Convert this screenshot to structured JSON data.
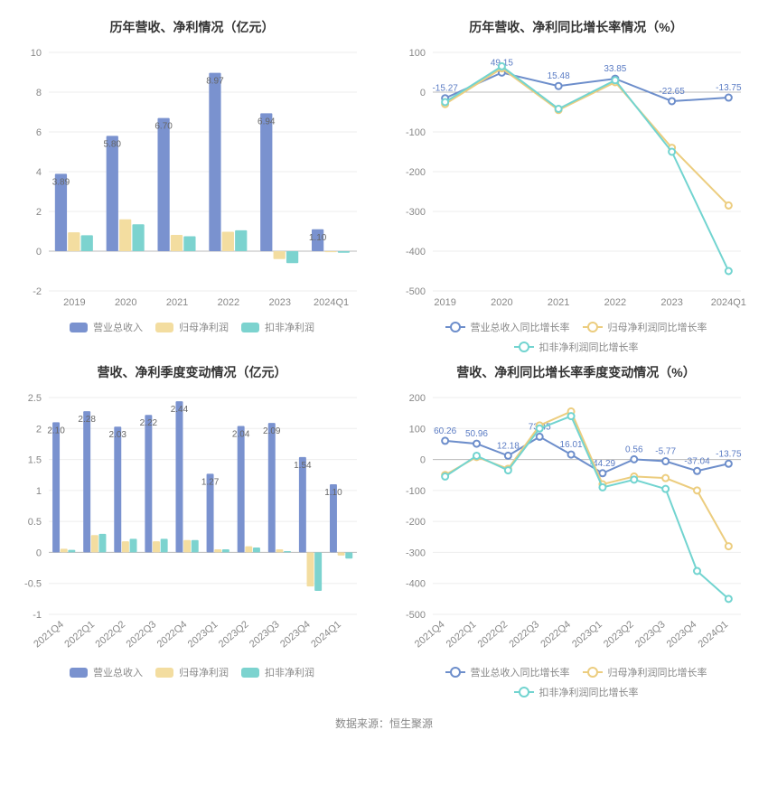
{
  "source_label": "数据来源：恒生聚源",
  "colors": {
    "bar1": "#7a92cf",
    "bar2": "#f3dda0",
    "bar3": "#7cd3cf",
    "line1": "#6d8ecb",
    "line2": "#eccd7f",
    "line3": "#72d4d0",
    "grid": "#eeeeee",
    "axis": "#cccccc",
    "text_muted": "#888888",
    "title": "#333333",
    "bg": "#ffffff"
  },
  "panels": {
    "top_left": {
      "title": "历年营收、净利情况（亿元）",
      "type": "bar",
      "categories": [
        "2019",
        "2020",
        "2021",
        "2022",
        "2023",
        "2024Q1"
      ],
      "ylim": [
        -2,
        10
      ],
      "ytick_step": 2,
      "series": [
        {
          "name": "营业总收入",
          "color_key": "bar1",
          "values": [
            3.89,
            5.8,
            6.7,
            8.97,
            6.94,
            1.1
          ],
          "show_labels": true
        },
        {
          "name": "归母净利润",
          "color_key": "bar2",
          "values": [
            0.95,
            1.6,
            0.82,
            0.98,
            -0.4,
            -0.05
          ]
        },
        {
          "name": "扣非净利润",
          "color_key": "bar3",
          "values": [
            0.8,
            1.35,
            0.75,
            1.05,
            -0.6,
            -0.08
          ]
        }
      ],
      "legend": [
        "营业总收入",
        "归母净利润",
        "扣非净利润"
      ]
    },
    "top_right": {
      "title": "历年营收、净利同比增长率情况（%）",
      "type": "line",
      "categories": [
        "2019",
        "2020",
        "2021",
        "2022",
        "2023",
        "2024Q1"
      ],
      "ylim": [
        -500,
        100
      ],
      "ytick_step": 100,
      "series": [
        {
          "name": "营业总收入同比增长率",
          "color_key": "line1",
          "values": [
            -15.27,
            49.15,
            15.48,
            33.85,
            -22.65,
            -13.75
          ],
          "show_labels": true
        },
        {
          "name": "归母净利润同比增长率",
          "color_key": "line2",
          "values": [
            -30,
            60,
            -45,
            25,
            -140,
            -285
          ]
        },
        {
          "name": "扣非净利润同比增长率",
          "color_key": "line3",
          "values": [
            -25,
            65,
            -42,
            30,
            -150,
            -450
          ]
        }
      ],
      "legend": [
        "营业总收入同比增长率",
        "归母净利润同比增长率",
        "扣非净利润同比增长率"
      ]
    },
    "bottom_left": {
      "title": "营收、净利季度变动情况（亿元）",
      "type": "bar",
      "categories": [
        "2021Q4",
        "2022Q1",
        "2022Q2",
        "2022Q3",
        "2022Q4",
        "2023Q1",
        "2023Q2",
        "2023Q3",
        "2023Q4",
        "2024Q1"
      ],
      "rotate_x": true,
      "ylim": [
        -1,
        2.5
      ],
      "ytick_step": 0.5,
      "series": [
        {
          "name": "营业总收入",
          "color_key": "bar1",
          "values": [
            2.1,
            2.28,
            2.03,
            2.22,
            2.44,
            1.27,
            2.04,
            2.09,
            1.54,
            1.1
          ],
          "show_labels": true
        },
        {
          "name": "归母净利润",
          "color_key": "bar2",
          "values": [
            0.06,
            0.28,
            0.18,
            0.18,
            0.2,
            0.05,
            0.1,
            0.05,
            -0.55,
            -0.05
          ]
        },
        {
          "name": "扣非净利润",
          "color_key": "bar3",
          "values": [
            0.04,
            0.3,
            0.22,
            0.22,
            0.2,
            0.05,
            0.08,
            0.02,
            -0.62,
            -0.1
          ]
        }
      ],
      "legend": [
        "营业总收入",
        "归母净利润",
        "扣非净利润"
      ]
    },
    "bottom_right": {
      "title": "营收、净利同比增长率季度变动情况（%）",
      "type": "line",
      "categories": [
        "2021Q4",
        "2022Q1",
        "2022Q2",
        "2022Q3",
        "2022Q4",
        "2023Q1",
        "2023Q2",
        "2023Q3",
        "2023Q4",
        "2024Q1"
      ],
      "rotate_x": true,
      "ylim": [
        -500,
        200
      ],
      "ytick_step": 100,
      "series": [
        {
          "name": "营业总收入同比增长率",
          "color_key": "line1",
          "values": [
            60.26,
            50.96,
            12.18,
            73.45,
            16.01,
            -44.29,
            0.56,
            -5.77,
            -37.04,
            -13.75
          ],
          "show_labels": true
        },
        {
          "name": "归母净利润同比增长率",
          "color_key": "line2",
          "values": [
            -50,
            8,
            -30,
            110,
            155,
            -80,
            -55,
            -60,
            -100,
            -280
          ]
        },
        {
          "name": "扣非净利润同比增长率",
          "color_key": "line3",
          "values": [
            -55,
            12,
            -35,
            100,
            140,
            -90,
            -65,
            -95,
            -360,
            -450
          ]
        }
      ],
      "legend": [
        "营业总收入同比增长率",
        "归母净利润同比增长率",
        "扣非净利润同比增长率"
      ]
    }
  }
}
